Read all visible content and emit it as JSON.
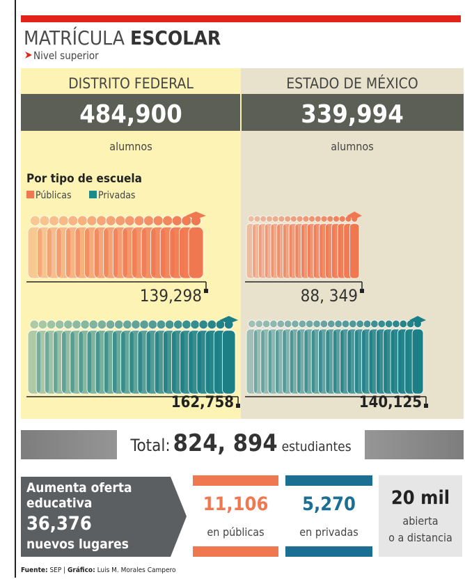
{
  "header": {
    "title_light": "MATRÍCULA",
    "title_bold": "ESCOLAR",
    "subtitle": "Nivel superior"
  },
  "regions": [
    {
      "name": "DISTRITO FEDERAL",
      "total": "484,900",
      "unit": "alumnos",
      "publicas": "139,298",
      "privadas": "162,758"
    },
    {
      "name": "ESTADO DE MÉXICO",
      "total": "339,994",
      "unit": "alumnos",
      "publicas": "88, 349",
      "privadas": "140,125"
    }
  ],
  "section_title": "Por tipo de escuela",
  "legend": [
    "Públicas",
    "Privadas"
  ],
  "total": {
    "label": "Total:",
    "value": "824, 894",
    "unit": "estudiantes"
  },
  "offer": {
    "lines": [
      "Aumenta oferta",
      "educativa"
    ],
    "value": "36,376",
    "text": "nuevos lugares"
  },
  "boxes": [
    {
      "value": "11,106",
      "text": [
        "en públicas"
      ]
    },
    {
      "value": "5,270",
      "text": [
        "en privadas"
      ]
    },
    {
      "value": "20 mil",
      "text": [
        "abierta",
        "o a distancia"
      ]
    }
  ],
  "footer": {
    "source_label": "Fuente:",
    "source": "SEP",
    "sep": "|",
    "credit_label": "Gráfico:",
    "credit": "Luis M. Morales Campero"
  }
}
